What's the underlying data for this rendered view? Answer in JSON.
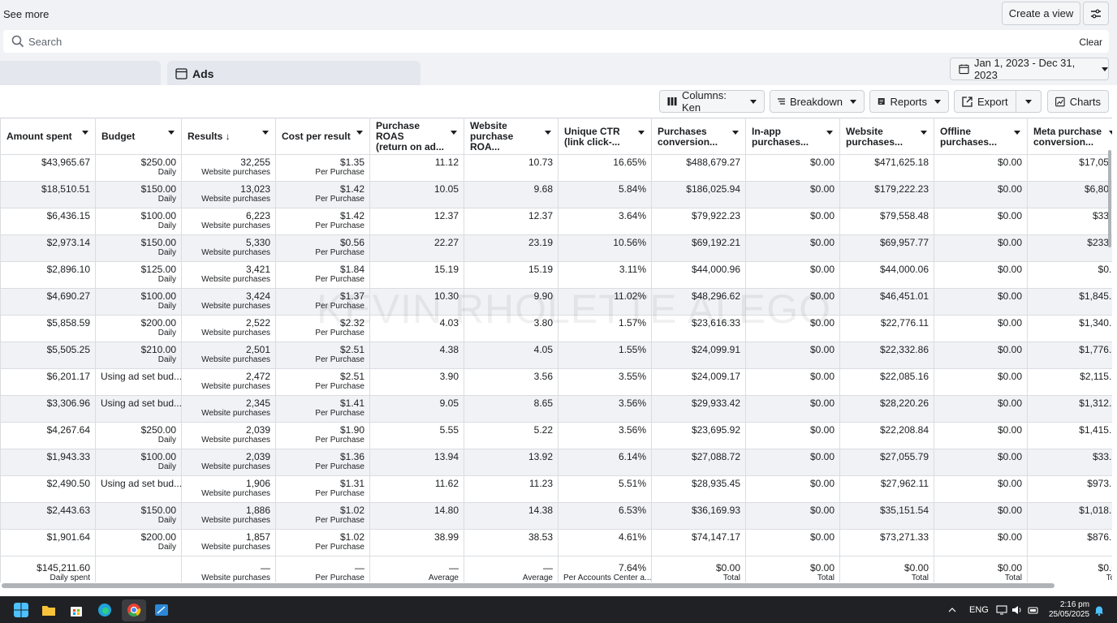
{
  "top": {
    "see_more": "See more",
    "create_view": "Create a view"
  },
  "search": {
    "placeholder": "Search",
    "clear": "Clear"
  },
  "tabs": {
    "ads": "Ads"
  },
  "date_range": "Jan 1, 2023 - Dec 31, 2023",
  "toolbar": {
    "columns": "Columns: Ken",
    "breakdown": "Breakdown",
    "reports": "Reports",
    "export": "Export",
    "charts": "Charts"
  },
  "watermark": "KEVIN RHOLETTE ALEGO",
  "headers": [
    {
      "l1": "Amount spent",
      "l2": ""
    },
    {
      "l1": "Budget",
      "l2": ""
    },
    {
      "l1": "Results ↓",
      "l2": ""
    },
    {
      "l1": "Cost per result",
      "l2": ""
    },
    {
      "l1": "Purchase ROAS",
      "l2": "(return on ad..."
    },
    {
      "l1": "Website",
      "l2": "purchase ROA..."
    },
    {
      "l1": "Unique CTR",
      "l2": "(link click-..."
    },
    {
      "l1": "Purchases",
      "l2": "conversion..."
    },
    {
      "l1": "In-app",
      "l2": "purchases..."
    },
    {
      "l1": "Website",
      "l2": "purchases..."
    },
    {
      "l1": "Offline",
      "l2": "purchases..."
    },
    {
      "l1": "Meta purchase",
      "l2": "conversion..."
    }
  ],
  "rows": [
    {
      "amount": "$43,965.67",
      "budget": "$250.00",
      "budget_sub": "Daily",
      "results": "32,255",
      "results_sub": "Website purchases",
      "cpr": "$1.35",
      "cpr_sub": "Per Purchase",
      "roas": "11.12",
      "web_roas": "10.73",
      "ctr": "16.65%",
      "pcv": "$488,679.27",
      "inapp": "$0.00",
      "webp": "$471,625.18",
      "offline": "$0.00",
      "meta": "$17,05..."
    },
    {
      "amount": "$18,510.51",
      "budget": "$150.00",
      "budget_sub": "Daily",
      "results": "13,023",
      "results_sub": "Website purchases",
      "cpr": "$1.42",
      "cpr_sub": "Per Purchase",
      "roas": "10.05",
      "web_roas": "9.68",
      "ctr": "5.84%",
      "pcv": "$186,025.94",
      "inapp": "$0.00",
      "webp": "$179,222.23",
      "offline": "$0.00",
      "meta": "$6,80..."
    },
    {
      "amount": "$6,436.15",
      "budget": "$100.00",
      "budget_sub": "Daily",
      "results": "6,223",
      "results_sub": "Website purchases",
      "cpr": "$1.42",
      "cpr_sub": "Per Purchase",
      "roas": "12.37",
      "web_roas": "12.37",
      "ctr": "3.64%",
      "pcv": "$79,922.23",
      "inapp": "$0.00",
      "webp": "$79,558.48",
      "offline": "$0.00",
      "meta": "$33..."
    },
    {
      "amount": "$2,973.14",
      "budget": "$150.00",
      "budget_sub": "Daily",
      "results": "5,330",
      "results_sub": "Website purchases",
      "cpr": "$0.56",
      "cpr_sub": "Per Purchase",
      "roas": "22.27",
      "web_roas": "23.19",
      "ctr": "10.56%",
      "pcv": "$69,192.21",
      "inapp": "$0.00",
      "webp": "$69,957.77",
      "offline": "$0.00",
      "meta": "$233..."
    },
    {
      "amount": "$2,896.10",
      "budget": "$125.00",
      "budget_sub": "Daily",
      "results": "3,421",
      "results_sub": "Website purchases",
      "cpr": "$1.84",
      "cpr_sub": "Per Purchase",
      "roas": "15.19",
      "web_roas": "15.19",
      "ctr": "3.11%",
      "pcv": "$44,000.96",
      "inapp": "$0.00",
      "webp": "$44,000.06",
      "offline": "$0.00",
      "meta": "$0..."
    },
    {
      "amount": "$4,690.27",
      "budget": "$100.00",
      "budget_sub": "Daily",
      "results": "3,424",
      "results_sub": "Website purchases",
      "cpr": "$1.37",
      "cpr_sub": "Per Purchase",
      "roas": "10.30",
      "web_roas": "9.90",
      "ctr": "11.02%",
      "pcv": "$48,296.62",
      "inapp": "$0.00",
      "webp": "$46,451.01",
      "offline": "$0.00",
      "meta": "$1,845..."
    },
    {
      "amount": "$5,858.59",
      "budget": "$200.00",
      "budget_sub": "Daily",
      "results": "2,522",
      "results_sub": "Website purchases",
      "cpr": "$2.32",
      "cpr_sub": "Per Purchase",
      "roas": "4.03",
      "web_roas": "3.80",
      "ctr": "1.57%",
      "pcv": "$23,616.33",
      "inapp": "$0.00",
      "webp": "$22,776.11",
      "offline": "$0.00",
      "meta": "$1,340..."
    },
    {
      "amount": "$5,505.25",
      "budget": "$210.00",
      "budget_sub": "Daily",
      "results": "2,501",
      "results_sub": "Website purchases",
      "cpr": "$2.51",
      "cpr_sub": "Per Purchase",
      "roas": "4.38",
      "web_roas": "4.05",
      "ctr": "1.55%",
      "pcv": "$24,099.91",
      "inapp": "$0.00",
      "webp": "$22,332.86",
      "offline": "$0.00",
      "meta": "$1,776..."
    },
    {
      "amount": "$6,201.17",
      "budget": "Using ad set bud...",
      "budget_sub": "",
      "results": "2,472",
      "results_sub": "Website purchases",
      "cpr": "$2.51",
      "cpr_sub": "Per Purchase",
      "roas": "3.90",
      "web_roas": "3.56",
      "ctr": "3.55%",
      "pcv": "$24,009.17",
      "inapp": "$0.00",
      "webp": "$22,085.16",
      "offline": "$0.00",
      "meta": "$2,115..."
    },
    {
      "amount": "$3,306.96",
      "budget": "Using ad set bud...",
      "budget_sub": "",
      "results": "2,345",
      "results_sub": "Website purchases",
      "cpr": "$1.41",
      "cpr_sub": "Per Purchase",
      "roas": "9.05",
      "web_roas": "8.65",
      "ctr": "3.56%",
      "pcv": "$29,933.42",
      "inapp": "$0.00",
      "webp": "$28,220.26",
      "offline": "$0.00",
      "meta": "$1,312..."
    },
    {
      "amount": "$4,267.64",
      "budget": "$250.00",
      "budget_sub": "Daily",
      "results": "2,039",
      "results_sub": "Website purchases",
      "cpr": "$1.90",
      "cpr_sub": "Per Purchase",
      "roas": "5.55",
      "web_roas": "5.22",
      "ctr": "3.56%",
      "pcv": "$23,695.92",
      "inapp": "$0.00",
      "webp": "$22,208.84",
      "offline": "$0.00",
      "meta": "$1,415..."
    },
    {
      "amount": "$1,943.33",
      "budget": "$100.00",
      "budget_sub": "Daily",
      "results": "2,039",
      "results_sub": "Website purchases",
      "cpr": "$1.36",
      "cpr_sub": "Per Purchase",
      "roas": "13.94",
      "web_roas": "13.92",
      "ctr": "6.14%",
      "pcv": "$27,088.72",
      "inapp": "$0.00",
      "webp": "$27,055.79",
      "offline": "$0.00",
      "meta": "$33..."
    },
    {
      "amount": "$2,490.50",
      "budget": "Using ad set bud...",
      "budget_sub": "",
      "results": "1,906",
      "results_sub": "Website purchases",
      "cpr": "$1.31",
      "cpr_sub": "Per Purchase",
      "roas": "11.62",
      "web_roas": "11.23",
      "ctr": "5.51%",
      "pcv": "$28,935.45",
      "inapp": "$0.00",
      "webp": "$27,962.11",
      "offline": "$0.00",
      "meta": "$973..."
    },
    {
      "amount": "$2,443.63",
      "budget": "$150.00",
      "budget_sub": "Daily",
      "results": "1,886",
      "results_sub": "Website purchases",
      "cpr": "$1.02",
      "cpr_sub": "Per Purchase",
      "roas": "14.80",
      "web_roas": "14.38",
      "ctr": "6.53%",
      "pcv": "$36,169.93",
      "inapp": "$0.00",
      "webp": "$35,151.54",
      "offline": "$0.00",
      "meta": "$1,018..."
    },
    {
      "amount": "$1,901.64",
      "budget": "$200.00",
      "budget_sub": "Daily",
      "results": "1,857",
      "results_sub": "Website purchases",
      "cpr": "$1.02",
      "cpr_sub": "Per Purchase",
      "roas": "38.99",
      "web_roas": "38.53",
      "ctr": "4.61%",
      "pcv": "$74,147.17",
      "inapp": "$0.00",
      "webp": "$73,271.33",
      "offline": "$0.00",
      "meta": "$876..."
    }
  ],
  "totals": {
    "amount": "$145,211.60",
    "amount_sub": "Daily spent",
    "results": "—",
    "results_sub": "Website purchases",
    "cpr": "—",
    "cpr_sub": "Per Purchase",
    "roas": "—",
    "roas_sub": "Average",
    "web_roas": "—",
    "web_roas_sub": "Average",
    "ctr": "7.64%",
    "ctr_sub": "Per Accounts Center a...",
    "pcv": "$0.00",
    "pcv_sub": "Total",
    "inapp": "$0.00",
    "inapp_sub": "Total",
    "webp": "$0.00",
    "webp_sub": "Total",
    "offline": "$0.00",
    "offline_sub": "Total",
    "meta": "$0.0",
    "meta_sub": "Tot"
  },
  "taskbar": {
    "lang": "ENG",
    "time": "2:16 pm",
    "date": "25/05/2025"
  }
}
